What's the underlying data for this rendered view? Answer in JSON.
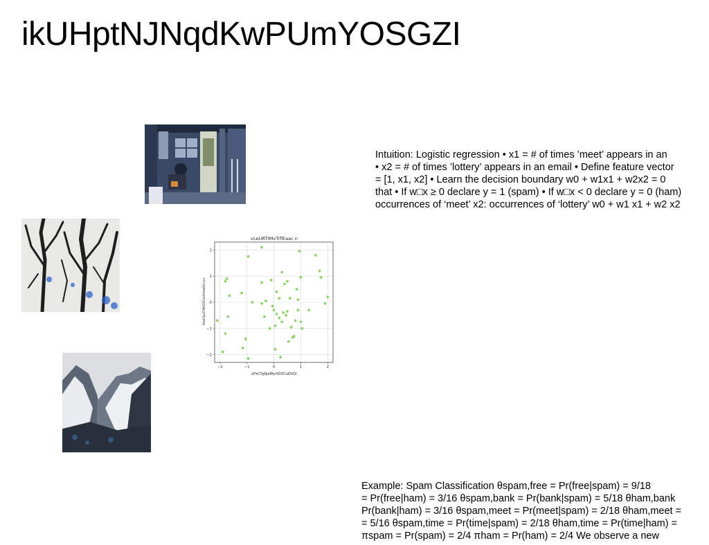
{
  "slide": {
    "title": "ikUHptNJNqdKwPUmYOSGZI",
    "intuition_lines": [
      "Intuition: Logistic regression • x1 = # of times ’meet’ appears in an",
      "• x2 = # of times ’lottery’ appears in an email • Define feature vector",
      "= [1, x1, x2] • Learn the decision boundary w0 + w1x1 + w2x2 = 0",
      "that • If w□x ≥ 0 declare y = 1 (spam) • If w□x < 0 declare y = 0 (ham)",
      "occurrences of ‘meet’ x2: occurrences of ‘lottery’ w0 + w1 x1 + w2 x2"
    ],
    "example_lines": [
      "Example: Spam Classification θspam,free = Pr(free|spam) = 9/18",
      "= Pr(free|ham) = 3/16 θspam,bank = Pr(bank|spam) = 5/18 θham,bank",
      "Pr(bank|ham) = 3/16 θspam,meet = Pr(meet|spam) = 2/18 θham,meet =",
      "= 5/16 θspam,time = Pr(time|spam) = 2/18 θham,time = Pr(time|ham) =",
      "πspam = Pr(spam) = 2/4 πham = Pr(ham) = 2/4 We observe a new"
    ]
  },
  "chart_data": {
    "type": "scatter",
    "title": "vLeURTtMvTrflEaac n",
    "xlabel": "uFxCYgSJeIRyiXGVCuDhQr",
    "ylabel": "lRozFfpvZFMKDQFzwXHewNQrvzu",
    "xlim": [
      -2.2,
      2.2
    ],
    "ylim": [
      -2.3,
      2.3
    ],
    "xticks": [
      -2,
      -1,
      0,
      1,
      2
    ],
    "yticks": [
      -2,
      -1,
      0,
      1,
      2
    ],
    "grid": true,
    "color": "#8fd16a",
    "points": [
      [
        -2.1,
        -0.7
      ],
      [
        -1.9,
        -1.9
      ],
      [
        -1.8,
        -1.2
      ],
      [
        -1.75,
        0.9
      ],
      [
        -1.7,
        -0.55
      ],
      [
        -1.65,
        0.25
      ],
      [
        -1.8,
        0.8
      ],
      [
        -1.2,
        0.35
      ],
      [
        -1.15,
        -1.75
      ],
      [
        -1.05,
        -1.4
      ],
      [
        -0.95,
        1.75
      ],
      [
        -0.95,
        -2.15
      ],
      [
        -0.8,
        0.0
      ],
      [
        -0.45,
        2.1
      ],
      [
        -0.45,
        0.75
      ],
      [
        -0.45,
        -0.05
      ],
      [
        -0.35,
        -0.55
      ],
      [
        -0.3,
        0.05
      ],
      [
        -0.15,
        -1.0
      ],
      [
        -0.1,
        0.85
      ],
      [
        -0.05,
        -0.15
      ],
      [
        0.0,
        -0.3
      ],
      [
        0.05,
        -0.9
      ],
      [
        0.1,
        0.4
      ],
      [
        0.1,
        -0.45
      ],
      [
        0.05,
        -1.8
      ],
      [
        0.2,
        0.15
      ],
      [
        0.2,
        -0.6
      ],
      [
        0.25,
        -2.1
      ],
      [
        0.3,
        1.15
      ],
      [
        0.3,
        -0.75
      ],
      [
        0.35,
        -0.4
      ],
      [
        0.4,
        0.7
      ],
      [
        0.45,
        -0.5
      ],
      [
        0.5,
        0.8
      ],
      [
        0.5,
        -0.35
      ],
      [
        0.55,
        -1.5
      ],
      [
        0.6,
        0.15
      ],
      [
        0.65,
        -0.95
      ],
      [
        0.7,
        -1.35
      ],
      [
        0.75,
        -1.3
      ],
      [
        0.8,
        -0.7
      ],
      [
        0.85,
        0.5
      ],
      [
        0.9,
        -0.3
      ],
      [
        0.9,
        0.1
      ],
      [
        0.95,
        1.95
      ],
      [
        1.0,
        -0.75
      ],
      [
        1.0,
        0.95
      ],
      [
        1.05,
        -1.0
      ],
      [
        1.3,
        -0.3
      ],
      [
        1.55,
        1.8
      ],
      [
        1.7,
        1.2
      ],
      [
        1.75,
        0.95
      ],
      [
        1.9,
        -0.05
      ],
      [
        2.0,
        0.2
      ]
    ]
  },
  "images": {
    "room": "interior-photo",
    "trees": "bare-trees-photo",
    "mountain": "snowy-mountain-photo"
  }
}
